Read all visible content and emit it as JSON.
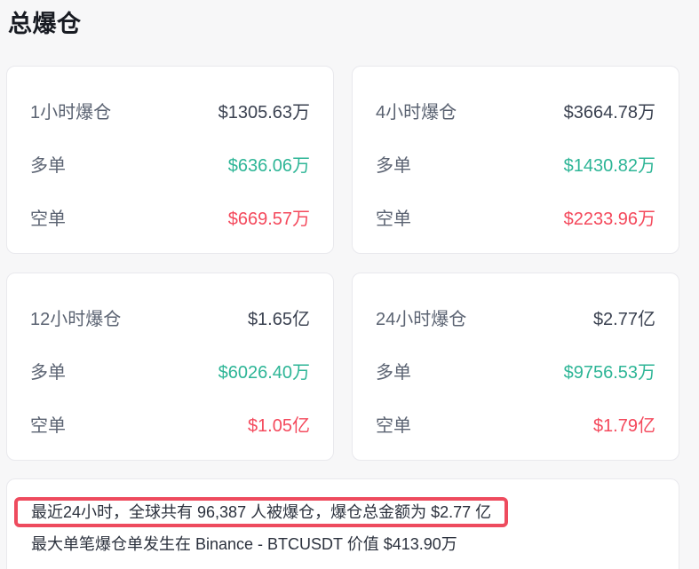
{
  "page": {
    "title": "总爆仓",
    "background_color": "#f7f7f8"
  },
  "colors": {
    "long_green": "#2db596",
    "short_red": "#f4495c",
    "total_dark": "#3a4150",
    "label_gray": "#5b6372",
    "annotation_red": "#ee4b5e",
    "card_border": "#e9e9ed"
  },
  "cards": [
    {
      "period_label": "1小时爆仓",
      "total_value": "$1305.63万",
      "long_label": "多单",
      "long_value": "$636.06万",
      "short_label": "空单",
      "short_value": "$669.57万"
    },
    {
      "period_label": "4小时爆仓",
      "total_value": "$3664.78万",
      "long_label": "多单",
      "long_value": "$1430.82万",
      "short_label": "空单",
      "short_value": "$2233.96万"
    },
    {
      "period_label": "12小时爆仓",
      "total_value": "$1.65亿",
      "long_label": "多单",
      "long_value": "$6026.40万",
      "short_label": "空单",
      "short_value": "$1.05亿"
    },
    {
      "period_label": "24小时爆仓",
      "total_value": "$2.77亿",
      "long_label": "多单",
      "long_value": "$9756.53万",
      "short_label": "空单",
      "short_value": "$1.79亿"
    }
  ],
  "summary": {
    "line1": "最近24小时，全球共有 96,387 人被爆仓，爆仓总金额为 $2.77 亿",
    "line2": "最大单笔爆仓单发生在 Binance - BTCUSDT 价值 $413.90万"
  }
}
